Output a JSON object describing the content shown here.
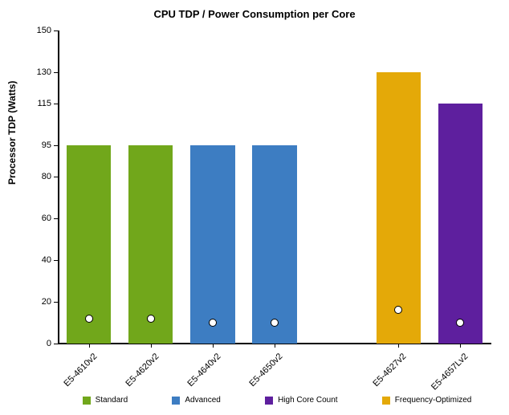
{
  "chart": {
    "type": "bar",
    "title": "CPU TDP / Power Consumption per Core",
    "title_fontsize": 13,
    "ylabel": "Processor TDP (Watts)",
    "ylabel_fontsize": 12,
    "xlabel_fontsize": 11,
    "ytick_fontsize": 11,
    "legend_fontsize": 10,
    "background_color": "#ffffff",
    "ylim": [
      0,
      150
    ],
    "yticks": [
      0,
      20,
      40,
      60,
      80,
      95,
      115,
      130,
      150
    ],
    "bar_width": 0.72,
    "axis_color": "#000000",
    "marker_fill": "#ffffff",
    "marker_stroke": "#000000",
    "series_colors": {
      "Standard": "#71a71b",
      "Advanced": "#3d7dc2",
      "High Core Count": "#5e1f9e",
      "Frequency-Optimized": "#e4a908"
    },
    "legend": [
      "Standard",
      "Advanced",
      "High Core Count",
      "Frequency-Optimized"
    ],
    "slots": 7,
    "bars": [
      {
        "slot": 0,
        "label": "E5-4610v2",
        "tdp": 95,
        "per_core": 12,
        "series": "Standard"
      },
      {
        "slot": 1,
        "label": "E5-4620v2",
        "tdp": 95,
        "per_core": 12,
        "series": "Standard"
      },
      {
        "slot": 2,
        "label": "E5-4640v2",
        "tdp": 95,
        "per_core": 10,
        "series": "Advanced"
      },
      {
        "slot": 3,
        "label": "E5-4650v2",
        "tdp": 95,
        "per_core": 10,
        "series": "Advanced"
      },
      {
        "slot": 5,
        "label": "E5-4627v2",
        "tdp": 130,
        "per_core": 16,
        "series": "Frequency-Optimized"
      },
      {
        "slot": 6,
        "label": "E5-4657Lv2",
        "tdp": 115,
        "per_core": 10,
        "series": "High Core Count"
      }
    ]
  }
}
